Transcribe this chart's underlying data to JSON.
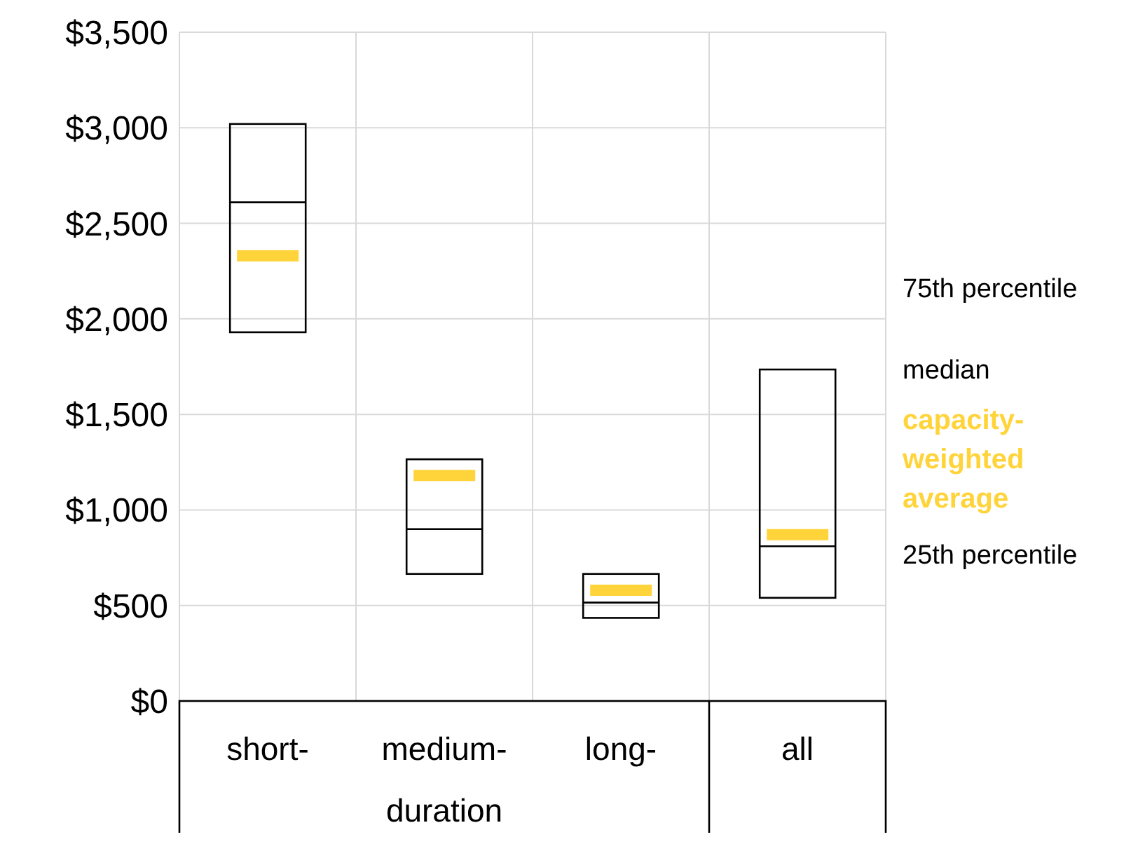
{
  "chart_data": {
    "type": "box",
    "categories": [
      "short-",
      "medium-",
      "long-",
      "all"
    ],
    "series": [
      {
        "type": "box",
        "color": "#000000",
        "boxes": [
          {
            "low": 1930,
            "q1": 1930,
            "median": 2610,
            "q3": 3020,
            "high": 3020,
            "mean": 2330
          },
          {
            "low": 665,
            "q1": 665,
            "median": 900,
            "q3": 1265,
            "high": 1265,
            "mean": 1180
          },
          {
            "low": 435,
            "q1": 435,
            "median": 515,
            "q3": 665,
            "high": 665,
            "mean": 580
          },
          {
            "low": 540,
            "q1": 540,
            "median": 810,
            "q3": 1735,
            "high": 1735,
            "mean": 870
          }
        ]
      }
    ],
    "ylim": [
      0,
      3500
    ],
    "yticks": [
      {
        "value": 0,
        "label": "$0"
      },
      {
        "value": 500,
        "label": "$500"
      },
      {
        "value": 1000,
        "label": "$1,000"
      },
      {
        "value": 1500,
        "label": "$1,500"
      },
      {
        "value": 2000,
        "label": "$2,000"
      },
      {
        "value": 2500,
        "label": "$2,500"
      },
      {
        "value": 3000,
        "label": "$3,000"
      },
      {
        "value": 3500,
        "label": "$3,500"
      }
    ],
    "grid": true,
    "annotations": [
      "75th percentile",
      "median",
      "capacity-weighted average",
      "25th percentile",
      "duration"
    ]
  }
}
